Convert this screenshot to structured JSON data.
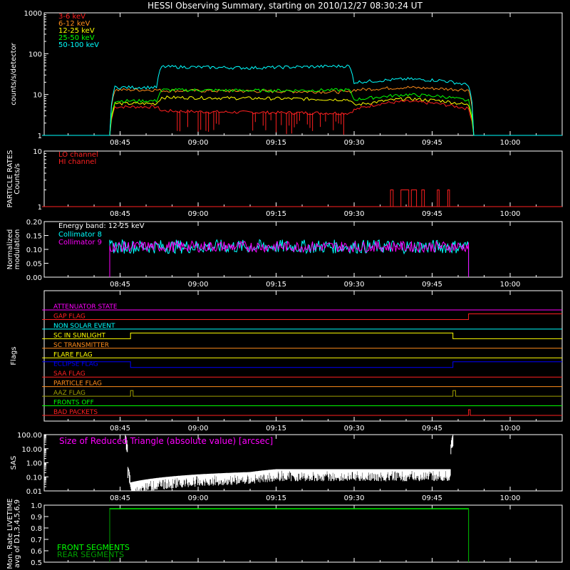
{
  "title": "HESSI Observing Summary, starting on 2010/12/27 08:30:24 UT",
  "colors": {
    "red": "#ff2020",
    "orange": "#ff8c1a",
    "yellow": "#ffff00",
    "green": "#00ff00",
    "cyan": "#00ffff",
    "magenta": "#ff00ff",
    "blue": "#0000ff",
    "olive": "#a0a000",
    "white": "#ffffff",
    "darkgreen": "#00a000"
  },
  "time_axis": {
    "range": [
      "08:30:24",
      "10:10:00"
    ],
    "ticks": [
      "08:45",
      "09:00",
      "09:15",
      "09:30",
      "09:45",
      "10:00"
    ]
  },
  "chart_data": [
    {
      "id": "rates",
      "type": "line",
      "ylabel": "counts/s/detector",
      "yscale": "log",
      "ylim": [
        1,
        1000
      ],
      "yticks": [
        "1",
        "10",
        "100",
        "1000"
      ],
      "legend_position": "top-left",
      "series": [
        {
          "name": "3-6 keV",
          "color": "red",
          "points": [
            [
              "08:30",
              "1"
            ],
            [
              "08:43",
              "1"
            ],
            [
              "08:44",
              "5"
            ],
            [
              "08:52",
              "5"
            ],
            [
              "08:53",
              "4"
            ],
            [
              "09:00",
              "3.8"
            ],
            [
              "09:15",
              "3.6"
            ],
            [
              "09:29",
              "3.5"
            ],
            [
              "09:30",
              "4.2"
            ],
            [
              "09:35",
              "6"
            ],
            [
              "09:40",
              "6.8"
            ],
            [
              "09:46",
              "6"
            ],
            [
              "09:52",
              "4.5"
            ],
            [
              "09:53",
              "1"
            ],
            [
              "10:10",
              "1"
            ]
          ]
        },
        {
          "name": "6-12 keV",
          "color": "orange",
          "points": [
            [
              "08:30",
              "1"
            ],
            [
              "08:43",
              "1"
            ],
            [
              "08:44",
              "13"
            ],
            [
              "08:52",
              "13"
            ],
            [
              "08:53",
              "12.5"
            ],
            [
              "09:15",
              "12"
            ],
            [
              "09:29",
              "11.5"
            ],
            [
              "09:30",
              "13"
            ],
            [
              "09:40",
              "15"
            ],
            [
              "09:52",
              "13"
            ],
            [
              "09:53",
              "1"
            ],
            [
              "10:10",
              "1"
            ]
          ]
        },
        {
          "name": "12-25 keV",
          "color": "yellow",
          "points": [
            [
              "08:30",
              "1"
            ],
            [
              "08:43",
              "1"
            ],
            [
              "08:44",
              "6"
            ],
            [
              "08:52",
              "6"
            ],
            [
              "08:53",
              "8.5"
            ],
            [
              "09:15",
              "8"
            ],
            [
              "09:29",
              "7.5"
            ],
            [
              "09:30",
              "5.5"
            ],
            [
              "09:40",
              "8"
            ],
            [
              "09:47",
              "7"
            ],
            [
              "09:52",
              "5.5"
            ],
            [
              "09:53",
              "1"
            ],
            [
              "10:10",
              "1"
            ]
          ]
        },
        {
          "name": "25-50 keV",
          "color": "green",
          "points": [
            [
              "08:30",
              "1"
            ],
            [
              "08:43",
              "1"
            ],
            [
              "08:44",
              "7"
            ],
            [
              "08:52",
              "7"
            ],
            [
              "08:53",
              "13"
            ],
            [
              "09:15",
              "12.5"
            ],
            [
              "09:29",
              "13"
            ],
            [
              "09:30",
              "7.5"
            ],
            [
              "09:40",
              "10"
            ],
            [
              "09:47",
              "9"
            ],
            [
              "09:52",
              "7"
            ],
            [
              "09:53",
              "1"
            ],
            [
              "10:10",
              "1"
            ]
          ]
        },
        {
          "name": "50-100 keV",
          "color": "cyan",
          "points": [
            [
              "08:30",
              "1"
            ],
            [
              "08:43",
              "1"
            ],
            [
              "08:44",
              "15"
            ],
            [
              "08:52",
              "15"
            ],
            [
              "08:53",
              "48"
            ],
            [
              "09:10",
              "45"
            ],
            [
              "09:29",
              "50"
            ],
            [
              "09:30",
              "20"
            ],
            [
              "09:40",
              "24"
            ],
            [
              "09:47",
              "22"
            ],
            [
              "09:52",
              "17"
            ],
            [
              "09:53",
              "1"
            ],
            [
              "10:10",
              "1"
            ]
          ]
        }
      ]
    },
    {
      "id": "particle",
      "type": "line",
      "ylabel": "PARTICLE RATES\nCounts/s",
      "yscale": "log",
      "ylim": [
        1,
        10
      ],
      "yticks": [
        "1",
        "10"
      ],
      "legend_position": "top-left",
      "series": [
        {
          "name": "LO channel",
          "color": "red",
          "points": [
            [
              "08:30",
              "1"
            ],
            [
              "09:37",
              "1"
            ],
            [
              "09:37",
              "2"
            ],
            [
              "09:37:30",
              "2"
            ],
            [
              "09:37:30",
              "1"
            ],
            [
              "09:39",
              "1"
            ],
            [
              "09:39",
              "2"
            ],
            [
              "09:40:30",
              "2"
            ],
            [
              "09:40:30",
              "1"
            ],
            [
              "09:41",
              "1"
            ],
            [
              "09:41",
              "2"
            ],
            [
              "09:42",
              "2"
            ],
            [
              "09:42",
              "1"
            ],
            [
              "09:43",
              "1"
            ],
            [
              "09:43",
              "2"
            ],
            [
              "09:43:30",
              "2"
            ],
            [
              "09:43:30",
              "1"
            ],
            [
              "09:46",
              "1"
            ],
            [
              "09:46",
              "2"
            ],
            [
              "09:46:20",
              "2"
            ],
            [
              "09:46:20",
              "1"
            ],
            [
              "09:48",
              "1"
            ],
            [
              "09:48",
              "2"
            ],
            [
              "09:48:20",
              "2"
            ],
            [
              "09:48:20",
              "1"
            ],
            [
              "10:10",
              "1"
            ]
          ]
        },
        {
          "name": "HI channel",
          "color": "red",
          "points": [
            [
              "08:30",
              "1"
            ],
            [
              "10:10",
              "1"
            ]
          ]
        }
      ]
    },
    {
      "id": "modulation",
      "type": "line",
      "ylabel": "Normalized\nmodulation",
      "yscale": "linear",
      "ylim": [
        0,
        0.2
      ],
      "yticks": [
        "0.00",
        "0.05",
        "0.10",
        "0.15",
        "0.20"
      ],
      "legend_position": "top-left",
      "legend_title": "Energy band: 12-25 keV",
      "active_range": [
        "08:43",
        "09:52"
      ],
      "series": [
        {
          "name": "Collimator 8",
          "color": "cyan",
          "mean": 0.11,
          "spread": 0.025
        },
        {
          "name": "Collimator 9",
          "color": "magenta",
          "mean": 0.11,
          "spread": 0.02
        }
      ]
    },
    {
      "id": "flags",
      "type": "line",
      "ylabel": "Flags",
      "flags": [
        {
          "name": "ATTENUATOR STATE",
          "color": "magenta",
          "segments": [
            [
              "08:30",
              "10:10",
              0
            ]
          ]
        },
        {
          "name": "GAP FLAG",
          "color": "red",
          "segments": [
            [
              "08:30",
              "09:52",
              0
            ],
            [
              "09:52",
              "10:10",
              1
            ]
          ]
        },
        {
          "name": "NON SOLAR EVENT",
          "color": "cyan",
          "segments": [
            [
              "08:30",
              "10:10",
              0
            ]
          ]
        },
        {
          "name": "SC IN SUNLIGHT",
          "color": "yellow",
          "segments": [
            [
              "08:30",
              "08:47",
              0
            ],
            [
              "08:47",
              "09:49",
              1
            ],
            [
              "09:49",
              "10:10",
              0
            ]
          ]
        },
        {
          "name": "SC TRANSMITTER",
          "color": "orange",
          "segments": [
            [
              "08:30",
              "10:10",
              0
            ]
          ]
        },
        {
          "name": "FLARE FLAG",
          "color": "yellow",
          "segments": [
            [
              "08:30",
              "10:10",
              0
            ]
          ]
        },
        {
          "name": "ECLIPSE FLAG",
          "color": "blue",
          "segments": [
            [
              "08:30",
              "08:47",
              1
            ],
            [
              "08:47",
              "09:49",
              0
            ],
            [
              "09:49",
              "10:10",
              1
            ]
          ]
        },
        {
          "name": "SAA FLAG",
          "color": "red",
          "segments": [
            [
              "08:30",
              "10:10",
              0
            ]
          ]
        },
        {
          "name": "PARTICLE FLAG",
          "color": "orange",
          "segments": [
            [
              "08:30",
              "10:10",
              0
            ]
          ]
        },
        {
          "name": "AAZ FLAG",
          "color": "olive",
          "segments": [
            [
              "08:30",
              "08:47",
              0
            ],
            [
              "08:47",
              "08:47:30",
              1
            ],
            [
              "08:47:30",
              "09:49",
              0
            ],
            [
              "09:49",
              "09:49:30",
              1
            ],
            [
              "09:49:30",
              "10:10",
              0
            ]
          ]
        },
        {
          "name": "FRONTS OFF",
          "color": "green",
          "segments": [
            [
              "08:30",
              "10:10",
              0
            ]
          ]
        },
        {
          "name": "BAD PACKETS",
          "color": "red",
          "segments": [
            [
              "08:30",
              "09:52",
              0
            ],
            [
              "09:52",
              "09:52:20",
              1
            ],
            [
              "09:52:20",
              "10:10",
              0
            ]
          ]
        }
      ]
    },
    {
      "id": "sas",
      "type": "line",
      "ylabel": "SAS",
      "yscale": "log",
      "ylim": [
        0.01,
        100
      ],
      "yticks": [
        "0.01",
        "0.10",
        "1.00",
        "10.00",
        "100.00"
      ],
      "annotation": "Size of Reduced Triangle (absolute value) [arcsec]",
      "series": [
        {
          "name": "",
          "color": "white",
          "points": [
            [
              "08:46",
              "100"
            ],
            [
              "08:46:30",
              "0.5"
            ],
            [
              "08:47",
              "0.04"
            ],
            [
              "09:00",
              "0.15"
            ],
            [
              "09:10",
              "0.22"
            ],
            [
              "09:15",
              "0.35"
            ],
            [
              "09:30",
              "0.35"
            ],
            [
              "09:45",
              "0.35"
            ],
            [
              "09:48:30",
              "0.35"
            ],
            [
              "09:49",
              "100"
            ]
          ]
        }
      ]
    },
    {
      "id": "livetime",
      "type": "line",
      "ylabel": "Mon. Rate LIVETIME\navg of D1,3,4,5,6,9",
      "yscale": "linear",
      "ylim": [
        0.5,
        1.0
      ],
      "yticks": [
        "0.5",
        "0.6",
        "0.7",
        "0.8",
        "0.9",
        "1.0"
      ],
      "legend_position": "bottom-left",
      "series": [
        {
          "name": "FRONT SEGMENTS",
          "color": "green",
          "points": [
            [
              "08:43",
              "0.5"
            ],
            [
              "08:43",
              "0.97"
            ],
            [
              "09:52",
              "0.97"
            ],
            [
              "09:52",
              "0.5"
            ]
          ]
        },
        {
          "name": "REAR SEGMENTS",
          "color": "darkgreen",
          "points": [
            [
              "08:43",
              "0.5"
            ],
            [
              "08:43",
              "0.965"
            ],
            [
              "09:52",
              "0.965"
            ],
            [
              "09:52",
              "0.5"
            ]
          ]
        }
      ]
    }
  ]
}
